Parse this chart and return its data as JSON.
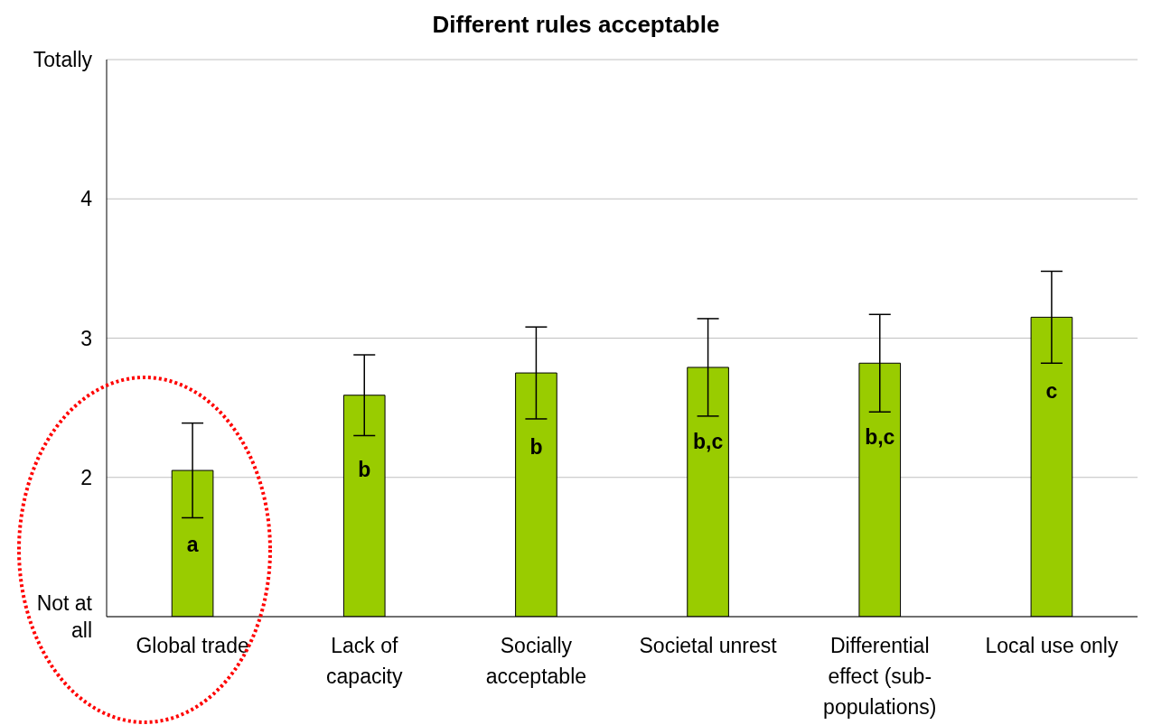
{
  "chart_data": {
    "type": "bar",
    "title": "Different rules acceptable",
    "categories": [
      "Global trade",
      "Lack of capacity",
      "Socially acceptable",
      "Societal unrest",
      "Differential effect (sub-populations)",
      "Local use only"
    ],
    "values": [
      2.05,
      2.59,
      2.75,
      2.79,
      2.82,
      3.15
    ],
    "errors": [
      0.34,
      0.29,
      0.33,
      0.35,
      0.35,
      0.33
    ],
    "color": "#99cc00",
    "ylim": [
      1,
      5
    ],
    "yticks": [
      {
        "value": 1,
        "label": "Not at all"
      },
      2,
      3,
      4,
      {
        "value": 5,
        "label": "Totally"
      }
    ],
    "grid": "y",
    "annotations": [
      "a",
      "b",
      "b",
      "b,c",
      "b,c",
      "c"
    ]
  }
}
